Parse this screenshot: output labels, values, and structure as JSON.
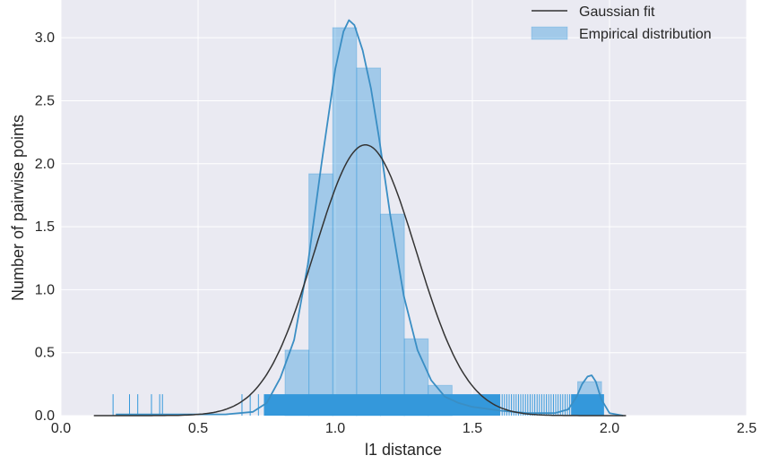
{
  "chart_data": {
    "type": "bar",
    "title": "",
    "xlabel": "l1 distance",
    "ylabel": "Number of pairwise points",
    "xlim": [
      0.0,
      2.5
    ],
    "ylim": [
      0.0,
      3.3
    ],
    "x_ticks": [
      "0.0",
      "0.5",
      "1.0",
      "1.5",
      "2.0",
      "2.5"
    ],
    "y_ticks": [
      "0.0",
      "0.5",
      "1.0",
      "1.5",
      "2.0",
      "2.5",
      "3.0"
    ],
    "grid": true,
    "legend_position": "top-right",
    "legend": [
      "Gaussian fit",
      "Empirical distribution"
    ],
    "histogram": {
      "bin_width": 0.087,
      "bins": [
        {
          "x0": 0.817,
          "value": 0.52
        },
        {
          "x0": 0.904,
          "value": 1.92
        },
        {
          "x0": 0.991,
          "value": 3.08
        },
        {
          "x0": 1.078,
          "value": 2.76
        },
        {
          "x0": 1.165,
          "value": 1.6
        },
        {
          "x0": 1.252,
          "value": 0.61
        },
        {
          "x0": 1.339,
          "value": 0.24
        },
        {
          "x0": 1.884,
          "value": 0.27
        }
      ]
    },
    "kde": {
      "x": [
        0.2,
        0.6,
        0.7,
        0.75,
        0.8,
        0.85,
        0.9,
        0.95,
        1.0,
        1.03,
        1.05,
        1.07,
        1.1,
        1.13,
        1.16,
        1.2,
        1.25,
        1.3,
        1.35,
        1.4,
        1.45,
        1.5,
        1.6,
        1.7,
        1.8,
        1.85,
        1.88,
        1.9,
        1.92,
        1.935,
        1.95,
        1.97,
        2.0,
        2.05
      ],
      "y": [
        0.01,
        0.01,
        0.03,
        0.1,
        0.3,
        0.6,
        1.2,
        2.0,
        2.75,
        3.05,
        3.14,
        3.1,
        2.9,
        2.6,
        2.2,
        1.6,
        0.95,
        0.52,
        0.28,
        0.15,
        0.1,
        0.07,
        0.04,
        0.02,
        0.02,
        0.05,
        0.15,
        0.25,
        0.31,
        0.32,
        0.27,
        0.13,
        0.02,
        0.0
      ]
    },
    "gaussian_fit": {
      "mean": 1.11,
      "sd": 0.1855,
      "peak": 2.15,
      "x_range": [
        0.12,
        2.06
      ]
    },
    "rug": {
      "height": 0.17,
      "isolated": [
        0.19,
        0.25,
        0.28,
        0.33,
        0.36,
        0.37,
        0.66,
        0.69,
        0.72
      ],
      "dense_ranges": [
        [
          0.74,
          1.6
        ],
        [
          1.86,
          1.98
        ]
      ],
      "sparse_range": [
        1.6,
        1.86
      ]
    },
    "colors": {
      "background": "#eaeaf2",
      "grid": "#ffffff",
      "histogram_fill": "#3498db",
      "histogram_alpha": 0.4,
      "kde_line": "#3a8ec4",
      "gaussian_line": "#333333",
      "rug": "#3498db"
    }
  }
}
